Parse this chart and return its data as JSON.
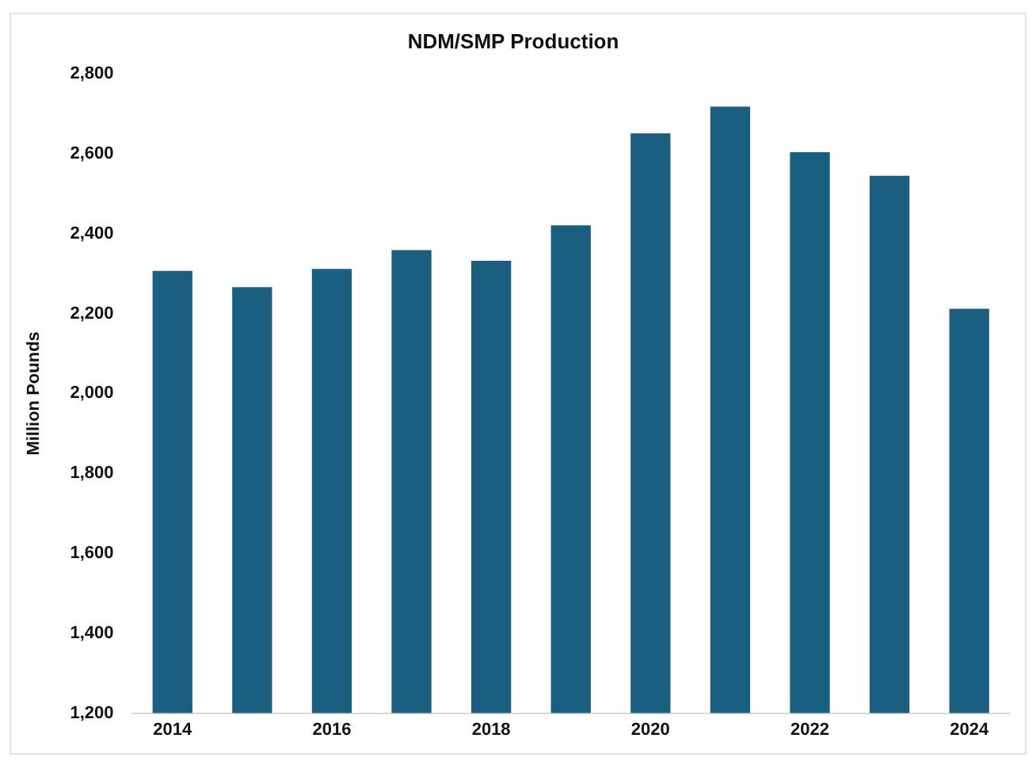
{
  "chart_data": {
    "type": "bar",
    "title": "NDM/SMP Production",
    "ylabel": "Million Pounds",
    "categories": [
      "2014",
      null,
      "2016",
      null,
      "2018",
      null,
      "2020",
      null,
      "2022",
      null,
      "2024"
    ],
    "values": [
      2307,
      2266,
      2312,
      2359,
      2332,
      2421,
      2651,
      2718,
      2604,
      2545,
      2212
    ],
    "color": "#1a5e80",
    "ylim": [
      1200,
      2800
    ],
    "yticks": [
      {
        "value": 1200,
        "label": "1,200"
      },
      {
        "value": 1400,
        "label": "1,400"
      },
      {
        "value": 1600,
        "label": "1,600"
      },
      {
        "value": 1800,
        "label": "1,800"
      },
      {
        "value": 2000,
        "label": "2,000"
      },
      {
        "value": 2200,
        "label": "2,200"
      },
      {
        "value": 2400,
        "label": "2,400"
      },
      {
        "value": 2600,
        "label": "2,600"
      },
      {
        "value": 2800,
        "label": "2,800"
      }
    ],
    "grid": false,
    "legend": false
  }
}
